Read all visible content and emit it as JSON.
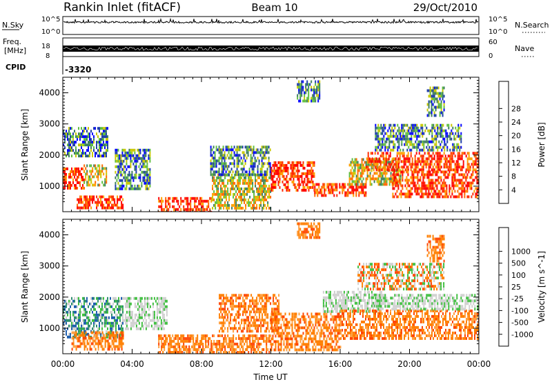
{
  "header": {
    "station": "Rankin Inlet (fitACF)",
    "beam": "Beam 10",
    "date": "29/Oct/2010"
  },
  "top_panels": {
    "nsky": {
      "label": "N.Sky",
      "ticks": [
        "10^5",
        "10^0"
      ],
      "right_ticks": [
        "10^5",
        "10^0"
      ],
      "right_label": "N.Search"
    },
    "freq": {
      "label_line1": "Freq.",
      "label_line2": "[MHz]",
      "ticks": [
        "18",
        "8"
      ],
      "right_ticks": [
        "60",
        "0"
      ],
      "right_label": "Nave"
    },
    "cpid": {
      "label": "CPID",
      "value": "-3320"
    }
  },
  "colors": {
    "power_scale": [
      "#0000ff",
      "#1f3fa8",
      "#3f7f5f",
      "#5fbf3f",
      "#c8c800",
      "#ffa000",
      "#ff6a00",
      "#ff2a00",
      "#ff0000"
    ],
    "velocity_scale": [
      "#ff0000",
      "#ff4500",
      "#ff7f00",
      "#ffa040",
      "#d0d0d0",
      "#d0d0d0",
      "#3fbf3f",
      "#2f8f6f",
      "#1f5faf",
      "#0000ff"
    ]
  },
  "chart_data": [
    {
      "type": "heatmap",
      "title": "Power",
      "ylabel": "Slant Range [km]",
      "colorbar_label": "Power [dB]",
      "colorbar_ticks": [
        "4",
        "8",
        "12",
        "16",
        "20",
        "24",
        "28"
      ],
      "yticks": [
        "1000",
        "2000",
        "3000",
        "4000"
      ],
      "ylim": [
        180,
        4500
      ],
      "xlim_hours": [
        0,
        24
      ],
      "regions": [
        {
          "t0": 0.0,
          "t1": 1.2,
          "r0": 900,
          "r1": 1600,
          "level": "high"
        },
        {
          "t0": 1.2,
          "t1": 2.5,
          "r0": 1000,
          "r1": 1700,
          "level": "mid"
        },
        {
          "t0": 0.0,
          "t1": 2.6,
          "r0": 2000,
          "r1": 2900,
          "level": "low"
        },
        {
          "t0": 0.8,
          "t1": 3.5,
          "r0": 300,
          "r1": 700,
          "level": "high"
        },
        {
          "t0": 3.0,
          "t1": 5.0,
          "r0": 900,
          "r1": 2200,
          "level": "low"
        },
        {
          "t0": 5.5,
          "t1": 8.6,
          "r0": 200,
          "r1": 650,
          "level": "high"
        },
        {
          "t0": 8.6,
          "t1": 12.0,
          "r0": 300,
          "r1": 1400,
          "level": "mid"
        },
        {
          "t0": 8.5,
          "t1": 12.0,
          "r0": 1400,
          "r1": 2300,
          "level": "low"
        },
        {
          "t0": 12.0,
          "t1": 14.5,
          "r0": 900,
          "r1": 1800,
          "level": "high"
        },
        {
          "t0": 13.5,
          "t1": 14.8,
          "r0": 3700,
          "r1": 4400,
          "level": "low"
        },
        {
          "t0": 14.5,
          "t1": 17.5,
          "r0": 700,
          "r1": 1100,
          "level": "high"
        },
        {
          "t0": 16.5,
          "t1": 19.5,
          "r0": 1100,
          "r1": 1900,
          "level": "mid"
        },
        {
          "t0": 17.5,
          "t1": 24.0,
          "r0": 1500,
          "r1": 2100,
          "level": "high"
        },
        {
          "t0": 19.0,
          "t1": 24.0,
          "r0": 700,
          "r1": 1500,
          "level": "high"
        },
        {
          "t0": 18.0,
          "t1": 23.0,
          "r0": 2200,
          "r1": 3000,
          "level": "low"
        },
        {
          "t0": 21.0,
          "t1": 22.0,
          "r0": 3300,
          "r1": 4200,
          "level": "low"
        }
      ]
    },
    {
      "type": "heatmap",
      "title": "Velocity",
      "ylabel": "Slant Range [km]",
      "xlabel": "Time UT",
      "colorbar_label": "Velocity [m s^-1]",
      "colorbar_ticks": [
        "-1000",
        "-500",
        "-100",
        "-25",
        "25",
        "100",
        "500",
        "1000"
      ],
      "yticks": [
        "1000",
        "2000",
        "3000",
        "4000"
      ],
      "xticks": [
        "00:00",
        "04:00",
        "08:00",
        "12:00",
        "16:00",
        "20:00",
        "00:00"
      ],
      "ylim": [
        180,
        4500
      ],
      "xlim_hours": [
        0,
        24
      ],
      "regions": [
        {
          "t0": 0.0,
          "t1": 3.5,
          "r0": 700,
          "r1": 2000,
          "level": "toward"
        },
        {
          "t0": 0.5,
          "t1": 3.5,
          "r0": 300,
          "r1": 900,
          "level": "away"
        },
        {
          "t0": 3.5,
          "t1": 6.0,
          "r0": 1000,
          "r1": 2000,
          "level": "slow"
        },
        {
          "t0": 5.5,
          "t1": 12.0,
          "r0": 200,
          "r1": 800,
          "level": "away"
        },
        {
          "t0": 9.0,
          "t1": 12.5,
          "r0": 900,
          "r1": 2100,
          "level": "away"
        },
        {
          "t0": 12.0,
          "t1": 16.0,
          "r0": 300,
          "r1": 1500,
          "level": "away"
        },
        {
          "t0": 13.5,
          "t1": 14.8,
          "r0": 3900,
          "r1": 4400,
          "level": "away"
        },
        {
          "t0": 15.0,
          "t1": 18.5,
          "r0": 1500,
          "r1": 2200,
          "level": "slow"
        },
        {
          "t0": 16.0,
          "t1": 24.0,
          "r0": 700,
          "r1": 1600,
          "level": "away"
        },
        {
          "t0": 18.0,
          "t1": 24.0,
          "r0": 1600,
          "r1": 2100,
          "level": "slow"
        },
        {
          "t0": 17.0,
          "t1": 22.0,
          "r0": 2300,
          "r1": 3100,
          "level": "mixed"
        },
        {
          "t0": 21.0,
          "t1": 22.0,
          "r0": 3200,
          "r1": 4000,
          "level": "away"
        }
      ]
    }
  ]
}
